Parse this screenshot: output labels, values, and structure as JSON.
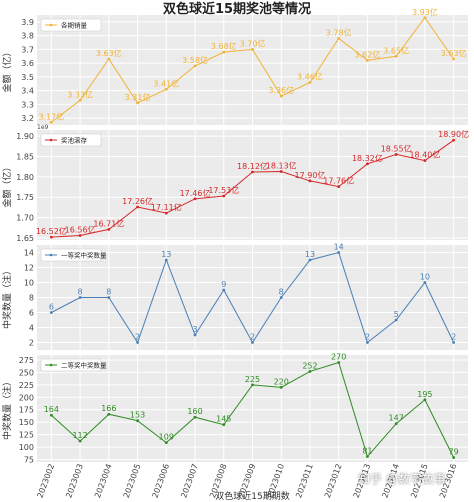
{
  "title": "双色球近15期奖池等情况",
  "xlabel": "双色球近15期期数",
  "watermark": "知乎 @数字故事",
  "chart_data": [
    {
      "type": "line",
      "legend": "各期销量",
      "ylabel": "金额（亿）",
      "color": "#f2b233",
      "ylim": [
        3.15,
        3.95
      ],
      "yticks": [
        3.2,
        3.3,
        3.4,
        3.5,
        3.6,
        3.7,
        3.8,
        3.9
      ],
      "values": [
        3.17,
        3.33,
        3.63,
        3.31,
        3.41,
        3.58,
        3.68,
        3.7,
        3.36,
        3.46,
        3.78,
        3.62,
        3.65,
        3.93,
        3.63
      ],
      "labels": [
        "3.17亿",
        "3.33亿",
        "3.63亿",
        "3.31亿",
        "3.41亿",
        "3.58亿",
        "3.68亿",
        "3.70亿",
        "3.36亿",
        "3.46亿",
        "3.78亿",
        "3.62亿",
        "3.65亿",
        "3.93亿",
        "3.63亿"
      ]
    },
    {
      "type": "line",
      "legend": "奖池滚存",
      "ylabel": "金额（亿）",
      "color": "#d62728",
      "ylim": [
        1.645,
        1.915
      ],
      "yticks": [
        1.65,
        1.7,
        1.75,
        1.8,
        1.85,
        1.9
      ],
      "ytick_labels": [
        "1.65",
        "1.70",
        "1.75",
        "1.80",
        "1.85",
        "1.90"
      ],
      "offset_text": "1e9",
      "values": [
        16.52,
        16.56,
        16.71,
        17.26,
        17.11,
        17.46,
        17.53,
        18.12,
        18.13,
        17.9,
        17.76,
        18.32,
        18.55,
        18.4,
        18.9
      ],
      "labels": [
        "16.52亿",
        "16.56亿",
        "16.71亿",
        "17.26亿",
        "17.11亿",
        "17.46亿",
        "17.53亿",
        "18.12亿",
        "18.13亿",
        "17.90亿",
        "17.76亿",
        "18.32亿",
        "18.55亿",
        "18.40亿",
        "18.90亿"
      ]
    },
    {
      "type": "line",
      "legend": "一等奖中奖数量",
      "ylabel": "中奖数量（注）",
      "color": "#4a7fb5",
      "ylim": [
        1,
        15
      ],
      "yticks": [
        2,
        4,
        6,
        8,
        10,
        12,
        14
      ],
      "values": [
        6,
        8,
        8,
        2,
        13,
        3,
        9,
        2,
        8,
        13,
        14,
        2,
        5,
        10,
        2
      ],
      "labels": [
        "6",
        "8",
        "8",
        "2",
        "13",
        "3",
        "9",
        "2",
        "8",
        "13",
        "14",
        "2",
        "5",
        "10",
        "2"
      ]
    },
    {
      "type": "line",
      "legend": "二等奖中奖数量",
      "ylabel": "中奖数量（注）",
      "color": "#2e8b22",
      "ylim": [
        70,
        285
      ],
      "yticks": [
        75,
        100,
        125,
        150,
        175,
        200,
        225,
        250,
        275
      ],
      "values": [
        164,
        112,
        166,
        153,
        109,
        160,
        145,
        225,
        220,
        252,
        270,
        81,
        147,
        195,
        79
      ],
      "labels": [
        "164",
        "112",
        "166",
        "153",
        "109",
        "160",
        "145",
        "225",
        "220",
        "252",
        "270",
        "81",
        "147",
        "195",
        "79"
      ]
    }
  ],
  "categories": [
    "2023002",
    "2023003",
    "2023004",
    "2023005",
    "2023006",
    "2023007",
    "2023008",
    "2023009",
    "2023010",
    "2023011",
    "2023012",
    "2023013",
    "2023014",
    "2023015",
    "2023016"
  ]
}
